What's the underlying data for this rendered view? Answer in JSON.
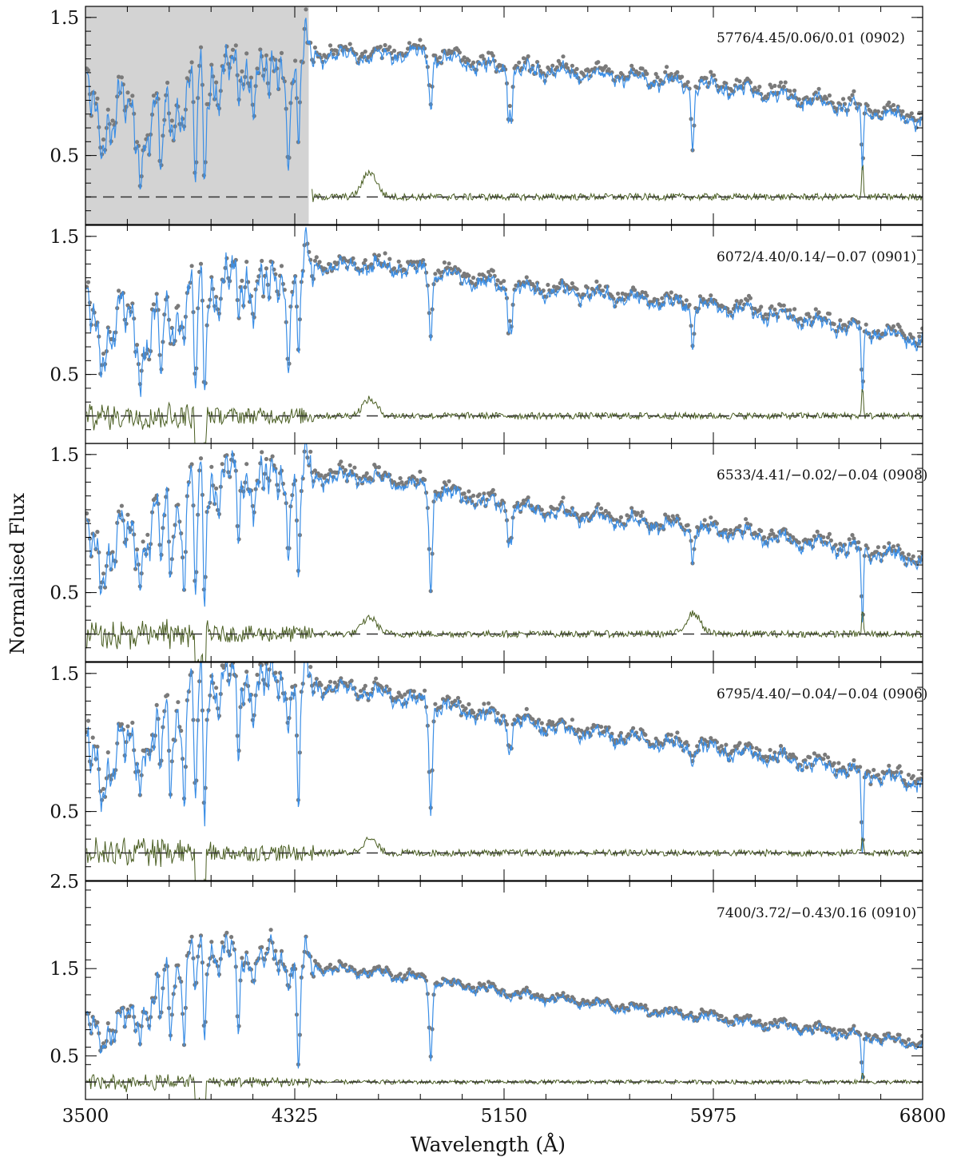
{
  "figure": {
    "ylabel": "Normalised Flux",
    "xlabel": "Wavelength (Å)"
  },
  "colors": {
    "observed_points": "#7a7a7a",
    "model_line": "#3a8ee6",
    "residual_line": "#4a5e22",
    "reference_dashed": "#333333",
    "masked_region": "#d3d3d3",
    "axes": "#000000"
  },
  "chart_data": [
    {
      "type": "line",
      "label": "5776/4.45/0.06/0.01 (0902)",
      "xlim": [
        3500,
        6800
      ],
      "ylim": [
        0,
        1.58
      ],
      "yticks": [
        0.5,
        1.5
      ],
      "ytick_labels": [
        "0.5",
        "1.5"
      ],
      "masked_region_x": [
        3500,
        4380
      ],
      "residual_reference_y": 0.2,
      "spectrum_knots": [
        [
          3510,
          0.9
        ],
        [
          3560,
          0.72
        ],
        [
          3650,
          0.8
        ],
        [
          3760,
          0.7
        ],
        [
          3880,
          0.88
        ],
        [
          3960,
          1.08
        ],
        [
          4100,
          1.1
        ],
        [
          4300,
          1.1
        ],
        [
          4420,
          1.22
        ],
        [
          4620,
          1.22
        ],
        [
          4800,
          1.24
        ],
        [
          5150,
          1.12
        ],
        [
          5600,
          1.07
        ],
        [
          6100,
          0.97
        ],
        [
          6500,
          0.85
        ],
        [
          6800,
          0.75
        ]
      ],
      "absorption_lines": [
        [
          3720,
          0.35
        ],
        [
          3800,
          0.45
        ],
        [
          3935,
          0.72
        ],
        [
          3969,
          0.72
        ],
        [
          4101,
          0.3
        ],
        [
          4227,
          0.35
        ],
        [
          4300,
          0.38
        ],
        [
          4340,
          0.45
        ],
        [
          4861,
          0.35
        ],
        [
          5168,
          0.35
        ],
        [
          5180,
          0.3
        ],
        [
          5890,
          0.3
        ],
        [
          5896,
          0.25
        ],
        [
          6563,
          0.45
        ]
      ],
      "residual_features": [
        [
          4620,
          0.18
        ],
        [
          6563,
          0.3
        ]
      ]
    },
    {
      "type": "line",
      "label": "6072/4.40/0.14/−0.07 (0901)",
      "xlim": [
        3500,
        6800
      ],
      "ylim": [
        0,
        1.58
      ],
      "yticks": [
        0.5,
        1.5
      ],
      "ytick_labels": [
        "0.5",
        "1.5"
      ],
      "residual_reference_y": 0.2,
      "spectrum_knots": [
        [
          3510,
          0.95
        ],
        [
          3560,
          0.75
        ],
        [
          3650,
          0.88
        ],
        [
          3760,
          0.78
        ],
        [
          3880,
          0.98
        ],
        [
          3960,
          1.15
        ],
        [
          4100,
          1.18
        ],
        [
          4300,
          1.15
        ],
        [
          4420,
          1.28
        ],
        [
          4620,
          1.28
        ],
        [
          4800,
          1.26
        ],
        [
          5150,
          1.13
        ],
        [
          5600,
          1.06
        ],
        [
          6100,
          0.96
        ],
        [
          6500,
          0.84
        ],
        [
          6800,
          0.74
        ]
      ],
      "absorption_lines": [
        [
          3720,
          0.3
        ],
        [
          3800,
          0.4
        ],
        [
          3935,
          0.75
        ],
        [
          3969,
          0.75
        ],
        [
          4101,
          0.4
        ],
        [
          4227,
          0.3
        ],
        [
          4300,
          0.35
        ],
        [
          4340,
          0.45
        ],
        [
          4861,
          0.45
        ],
        [
          5168,
          0.3
        ],
        [
          5180,
          0.28
        ],
        [
          5890,
          0.2
        ],
        [
          5896,
          0.18
        ],
        [
          6563,
          0.5
        ]
      ],
      "residual_features": [
        [
          4620,
          0.12
        ],
        [
          6563,
          0.25
        ]
      ]
    },
    {
      "type": "line",
      "label": "6533/4.41/−0.02/−0.04 (0908)",
      "xlim": [
        3500,
        6800
      ],
      "ylim": [
        0,
        1.58
      ],
      "yticks": [
        0.5,
        1.5
      ],
      "ytick_labels": [
        "0.5",
        "1.5"
      ],
      "residual_reference_y": 0.2,
      "spectrum_knots": [
        [
          3510,
          0.85
        ],
        [
          3560,
          0.75
        ],
        [
          3650,
          0.85
        ],
        [
          3760,
          0.95
        ],
        [
          3880,
          1.15
        ],
        [
          3960,
          1.32
        ],
        [
          4100,
          1.34
        ],
        [
          4300,
          1.3
        ],
        [
          4420,
          1.33
        ],
        [
          4620,
          1.33
        ],
        [
          4800,
          1.27
        ],
        [
          5150,
          1.12
        ],
        [
          5600,
          1.02
        ],
        [
          6100,
          0.92
        ],
        [
          6500,
          0.82
        ],
        [
          6800,
          0.73
        ]
      ],
      "absorption_lines": [
        [
          3720,
          0.25
        ],
        [
          3800,
          0.3
        ],
        [
          3835,
          0.35
        ],
        [
          3889,
          0.45
        ],
        [
          3935,
          0.8
        ],
        [
          3969,
          0.85
        ],
        [
          4101,
          0.6
        ],
        [
          4227,
          0.2
        ],
        [
          4300,
          0.25
        ],
        [
          4340,
          0.6
        ],
        [
          4861,
          0.7
        ],
        [
          5168,
          0.25
        ],
        [
          5180,
          0.2
        ],
        [
          5890,
          0.15
        ],
        [
          5896,
          0.12
        ],
        [
          6563,
          0.55
        ]
      ],
      "residual_features": [
        [
          4620,
          0.12
        ],
        [
          5896,
          0.15
        ],
        [
          6563,
          0.2
        ]
      ]
    },
    {
      "type": "line",
      "label": "6795/4.40/−0.04/−0.04 (0906)",
      "xlim": [
        3500,
        6800
      ],
      "ylim": [
        0,
        1.58
      ],
      "yticks": [
        0.5,
        1.5
      ],
      "ytick_labels": [
        "0.5",
        "1.5"
      ],
      "residual_reference_y": 0.2,
      "spectrum_knots": [
        [
          3510,
          0.88
        ],
        [
          3560,
          0.8
        ],
        [
          3650,
          0.9
        ],
        [
          3760,
          1.08
        ],
        [
          3880,
          1.25
        ],
        [
          3960,
          1.45
        ],
        [
          4100,
          1.45
        ],
        [
          4300,
          1.42
        ],
        [
          4420,
          1.4
        ],
        [
          4620,
          1.36
        ],
        [
          4800,
          1.3
        ],
        [
          5150,
          1.16
        ],
        [
          5600,
          1.03
        ],
        [
          6100,
          0.92
        ],
        [
          6500,
          0.8
        ],
        [
          6800,
          0.7
        ]
      ],
      "absorption_lines": [
        [
          3720,
          0.2
        ],
        [
          3770,
          0.3
        ],
        [
          3798,
          0.35
        ],
        [
          3835,
          0.4
        ],
        [
          3889,
          0.5
        ],
        [
          3935,
          0.85
        ],
        [
          3969,
          0.95
        ],
        [
          4101,
          0.7
        ],
        [
          4227,
          0.15
        ],
        [
          4340,
          0.75
        ],
        [
          4861,
          0.75
        ],
        [
          5168,
          0.2
        ],
        [
          5180,
          0.15
        ],
        [
          5890,
          0.12
        ],
        [
          6563,
          0.6
        ]
      ],
      "residual_features": [
        [
          4620,
          0.1
        ],
        [
          6563,
          0.15
        ]
      ]
    },
    {
      "type": "line",
      "label": "7400/3.72/−0.43/0.16 (0910)",
      "xlim": [
        3500,
        6800
      ],
      "ylim": [
        0,
        2.5
      ],
      "yticks": [
        0.5,
        1.5,
        2.5
      ],
      "ytick_labels": [
        "0.5",
        "1.5",
        "2.5"
      ],
      "residual_reference_y": 0.2,
      "spectrum_knots": [
        [
          3510,
          0.8
        ],
        [
          3560,
          0.78
        ],
        [
          3650,
          0.82
        ],
        [
          3700,
          1.0
        ],
        [
          3760,
          1.3
        ],
        [
          3880,
          1.55
        ],
        [
          3960,
          1.75
        ],
        [
          4100,
          1.65
        ],
        [
          4300,
          1.55
        ],
        [
          4420,
          1.5
        ],
        [
          4620,
          1.45
        ],
        [
          4800,
          1.38
        ],
        [
          5150,
          1.22
        ],
        [
          5600,
          1.05
        ],
        [
          6100,
          0.88
        ],
        [
          6500,
          0.75
        ],
        [
          6800,
          0.62
        ]
      ],
      "absorption_lines": [
        [
          3720,
          0.25
        ],
        [
          3750,
          0.3
        ],
        [
          3770,
          0.4
        ],
        [
          3798,
          0.5
        ],
        [
          3835,
          0.6
        ],
        [
          3889,
          0.7
        ],
        [
          3935,
          0.5
        ],
        [
          3969,
          1.0
        ],
        [
          4101,
          1.0
        ],
        [
          4340,
          1.1
        ],
        [
          4861,
          0.85
        ],
        [
          6563,
          0.55
        ]
      ],
      "residual_features": [
        [
          6563,
          0.15
        ]
      ]
    }
  ],
  "x_axis": {
    "ticks": [
      3500,
      4325,
      5150,
      5975,
      6800
    ],
    "tick_labels": [
      "3500",
      "4325",
      "5150",
      "5975",
      "6800"
    ]
  }
}
